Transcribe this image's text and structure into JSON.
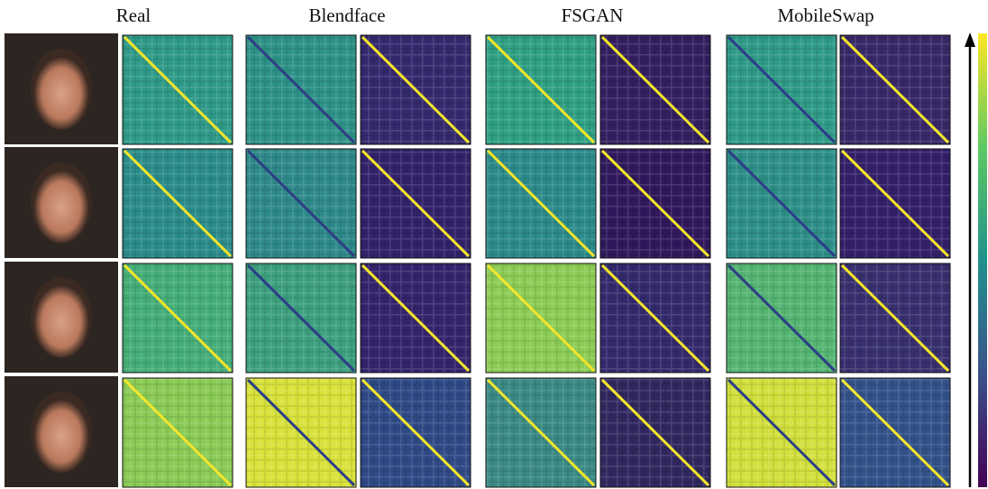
{
  "headers": [
    "Real",
    "Blendface",
    "FSGAN",
    "MobileSwap"
  ]
}
